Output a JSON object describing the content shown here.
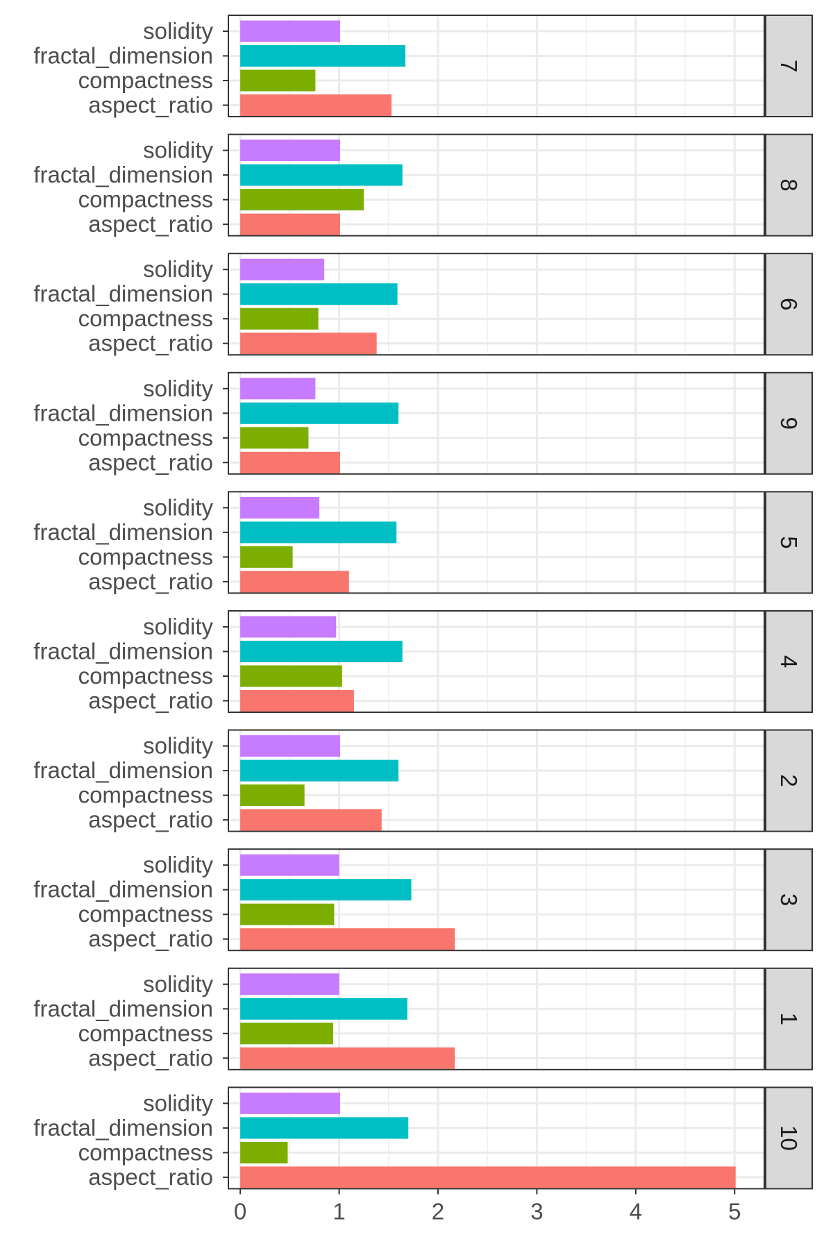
{
  "chart_data": {
    "type": "bar",
    "orientation": "horizontal",
    "faceted": true,
    "title": "",
    "xlabel": "",
    "ylabel": "",
    "xlim": [
      -0.12,
      5.3
    ],
    "x_ticks": [
      "0",
      "1",
      "2",
      "3",
      "4",
      "5"
    ],
    "grid": true,
    "legend": "none",
    "categories": [
      "solidity",
      "fractal_dimension",
      "compactness",
      "aspect_ratio"
    ],
    "colors": {
      "solidity": "#c77cff",
      "fractal_dimension": "#00bfc4",
      "compactness": "#7cae00",
      "aspect_ratio": "#f8766d"
    },
    "panels": [
      {
        "label": "7",
        "values": {
          "solidity": 1.01,
          "fractal_dimension": 1.67,
          "compactness": 0.76,
          "aspect_ratio": 1.53
        }
      },
      {
        "label": "8",
        "values": {
          "solidity": 1.01,
          "fractal_dimension": 1.64,
          "compactness": 1.25,
          "aspect_ratio": 1.01
        }
      },
      {
        "label": "6",
        "values": {
          "solidity": 0.85,
          "fractal_dimension": 1.59,
          "compactness": 0.79,
          "aspect_ratio": 1.38
        }
      },
      {
        "label": "9",
        "values": {
          "solidity": 0.76,
          "fractal_dimension": 1.6,
          "compactness": 0.69,
          "aspect_ratio": 1.01
        }
      },
      {
        "label": "5",
        "values": {
          "solidity": 0.8,
          "fractal_dimension": 1.58,
          "compactness": 0.53,
          "aspect_ratio": 1.1
        }
      },
      {
        "label": "4",
        "values": {
          "solidity": 0.97,
          "fractal_dimension": 1.64,
          "compactness": 1.03,
          "aspect_ratio": 1.15
        }
      },
      {
        "label": "2",
        "values": {
          "solidity": 1.01,
          "fractal_dimension": 1.6,
          "compactness": 0.65,
          "aspect_ratio": 1.43
        }
      },
      {
        "label": "3",
        "values": {
          "solidity": 1.0,
          "fractal_dimension": 1.73,
          "compactness": 0.95,
          "aspect_ratio": 2.17
        }
      },
      {
        "label": "1",
        "values": {
          "solidity": 1.0,
          "fractal_dimension": 1.69,
          "compactness": 0.94,
          "aspect_ratio": 2.17
        }
      },
      {
        "label": "10",
        "values": {
          "solidity": 1.01,
          "fractal_dimension": 1.7,
          "compactness": 0.48,
          "aspect_ratio": 5.01
        }
      }
    ]
  }
}
